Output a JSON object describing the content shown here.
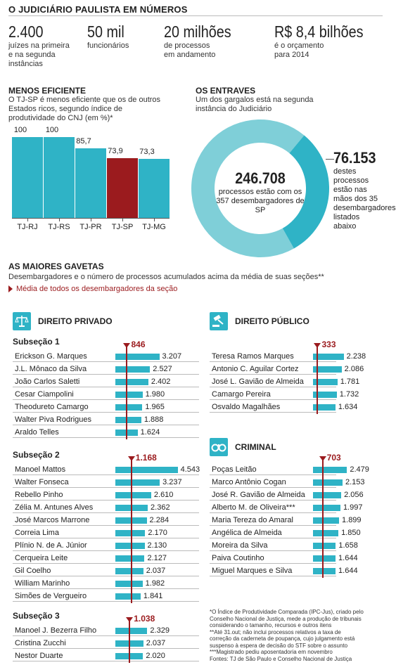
{
  "title": "O JUDICIÁRIO PAULISTA EM NÚMEROS",
  "stats": [
    {
      "value": "2.400",
      "desc": "juízes na primeira\ne na segunda\ninstâncias"
    },
    {
      "value": "50 mil",
      "desc": "funcionários"
    },
    {
      "value": "20 milhões",
      "desc": "de processos\nem andamento"
    },
    {
      "value": "R$ 8,4 bilhões",
      "desc": "é o orçamento\npara 2014"
    }
  ],
  "efficiency": {
    "title": "MENOS EFICIENTE",
    "subtitle": "O TJ-SP é menos eficiente que os de outros Estados ricos, segundo índice de produtividade do CNJ (em %)*"
  },
  "entraves": {
    "title": "OS ENTRAVES",
    "subtitle": "Um dos gargalos está na segunda instância do Judiciário",
    "total_value": "246.708",
    "total_desc": "processos estão com os 357 desembargadores de SP",
    "part_value": "76.153",
    "part_desc": "destes processos estão nas mãos dos 35 desembargadores listados abaixo"
  },
  "gavetas": {
    "title": "AS MAIORES GAVETAS",
    "subtitle": "Desembargadores e o número de processos acumulados acima da média de suas seções**",
    "legend": "Média de todos os desembargadores da seção"
  },
  "panels": {
    "privado": {
      "title": "DIREITO PRIVADO",
      "icon": "scales-icon"
    },
    "publico": {
      "title": "DIREITO PÚBLICO",
      "icon": "gavel-icon"
    },
    "criminal": {
      "title": "CRIMINAL",
      "icon": "handcuffs-icon"
    }
  },
  "footnotes": "*O Índice de Produtividade Comparada (IPC-Jus), criado pelo\nConselho Nacional de Justiça, mede a produção de tribunais\nconsiderando o tamanho, recursos e outros itens\n**Até 31.out; não inclui processos relativos a taxa de\ncorreção da caderneta de poupança, cujo julgamento está\nsuspenso à espera de decisão do STF sobre o assunto\n***Magistrado pediu aposentadoria em novembro\nFontes: TJ de São Paulo e Conselho Nacional de Justiça",
  "colors": {
    "accent": "#2fb3c6",
    "highlight": "#9b1b1e",
    "donut_light": "#7fcfd8"
  },
  "chart_data": [
    {
      "type": "bar",
      "id": "eficiencia",
      "categories": [
        "TJ-RJ",
        "TJ-RS",
        "TJ-PR",
        "TJ-SP",
        "TJ-MG"
      ],
      "values": [
        100,
        100,
        85.7,
        73.9,
        73.3
      ],
      "labels": [
        "100",
        "100",
        "85,7",
        "73,9",
        "73,3"
      ],
      "highlight": "TJ-SP",
      "ylim": [
        0,
        100
      ]
    },
    {
      "type": "pie",
      "id": "entraves",
      "total": 246708,
      "part": 76153
    },
    {
      "type": "bar",
      "id": "privado-sub1",
      "section_title": "Subseção 1",
      "average": 846,
      "average_label": "846",
      "categories": [
        "Erickson G. Marques",
        "J.L. Mônaco da Silva",
        "João Carlos Saletti",
        "Cesar Ciampolini",
        "Theodureto Camargo",
        "Walter Piva Rodrigues",
        "Araldo Telles"
      ],
      "values": [
        3207,
        2527,
        2402,
        1980,
        1965,
        1888,
        1624
      ],
      "labels": [
        "3.207",
        "2.527",
        "2.402",
        "1.980",
        "1.965",
        "1.888",
        "1.624"
      ]
    },
    {
      "type": "bar",
      "id": "privado-sub2",
      "section_title": "Subseção 2",
      "average": 1168,
      "average_label": "1.168",
      "categories": [
        "Manoel Mattos",
        "Walter Fonseca",
        "Rebello Pinho",
        "Zélia M. Antunes Alves",
        "José Marcos Marrone",
        "Correia Lima",
        "Plínio N. de A. Júnior",
        "Cerqueira Leite",
        "Gil Coelho",
        "William Marinho",
        "Simões de Vergueiro"
      ],
      "values": [
        4543,
        3237,
        2610,
        2362,
        2284,
        2170,
        2130,
        2127,
        2037,
        1982,
        1841
      ],
      "labels": [
        "4.543",
        "3.237",
        "2.610",
        "2.362",
        "2.284",
        "2.170",
        "2.130",
        "2.127",
        "2.037",
        "1.982",
        "1.841"
      ]
    },
    {
      "type": "bar",
      "id": "privado-sub3",
      "section_title": "Subseção 3",
      "average": 1038,
      "average_label": "1.038",
      "categories": [
        "Manoel J. Bezerra Filho",
        "Cristina Zucchi",
        "Nestor Duarte"
      ],
      "values": [
        2329,
        2037,
        2020
      ],
      "labels": [
        "2.329",
        "2.037",
        "2.020"
      ]
    },
    {
      "type": "bar",
      "id": "publico",
      "average": 333,
      "average_label": "333",
      "categories": [
        "Teresa Ramos Marques",
        "Antonio C. Aguilar Cortez",
        "José L. Gavião de Almeida",
        "Camargo Pereira",
        "Osvaldo Magalhães"
      ],
      "values": [
        2238,
        2086,
        1781,
        1732,
        1634
      ],
      "labels": [
        "2.238",
        "2.086",
        "1.781",
        "1.732",
        "1.634"
      ]
    },
    {
      "type": "bar",
      "id": "criminal",
      "average": 703,
      "average_label": "703",
      "categories": [
        "Poças Leitão",
        "Marco Antônio Cogan",
        "José R. Gavião de Almeida",
        "Alberto M. de Oliveira***",
        "Maria Tereza do Amaral",
        "Angélica de Almeida",
        "Moreira da Silva",
        "Paiva Coutinho",
        "Miguel Marques e Silva"
      ],
      "values": [
        2479,
        2153,
        2056,
        1997,
        1899,
        1850,
        1658,
        1644,
        1644
      ],
      "labels": [
        "2.479",
        "2.153",
        "2.056",
        "1.997",
        "1.899",
        "1.850",
        "1.658",
        "1.644",
        "1.644"
      ]
    }
  ]
}
